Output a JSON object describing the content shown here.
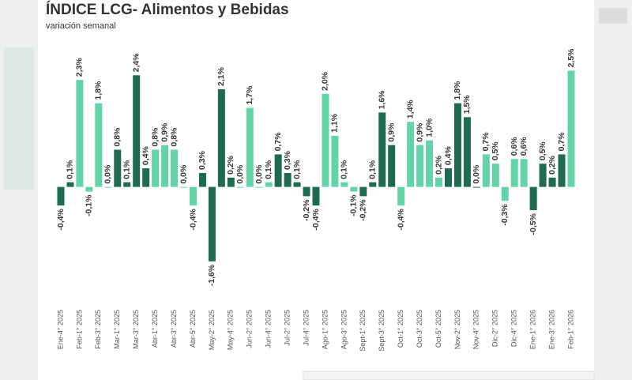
{
  "chart_data": {
    "type": "bar",
    "title": "ÍNDICE LCG- Alimentos y Bebidas",
    "subtitle": "variación semanal",
    "categories": [
      "Ene-4° 2025",
      null,
      "Feb-1° 2025",
      null,
      "Feb-3° 2025",
      null,
      "Mar-1° 2025",
      null,
      "Mar-3° 2025",
      null,
      "Abr-1° 2025",
      null,
      "Abr-3° 2025",
      null,
      "Abr-5° 2025",
      null,
      "May-2° 2025",
      null,
      "May-4° 2025",
      null,
      "Jun-2° 2025",
      null,
      "Jun-4° 2025",
      null,
      "Jul-2° 2025",
      null,
      "Jul-4° 2025",
      null,
      "Ago-1° 2025",
      null,
      "Ago-3° 2025",
      null,
      "Sept-1° 2025",
      null,
      "Sept-3° 2025",
      null,
      "Oct-1° 2025",
      null,
      "Oct-3° 2025",
      null,
      "Oct-5° 2025",
      null,
      "Nov-2° 2025",
      null,
      "Nov-4° 2025",
      null,
      "Dic-2° 2025",
      null,
      "Dic-4° 2025",
      null,
      "Ene-1° 2026",
      null,
      "Ene-3° 2026",
      null,
      "Feb-1° 2026"
    ],
    "values": [
      -0.4,
      0.1,
      2.3,
      -0.1,
      1.8,
      0.0,
      0.8,
      0.1,
      2.4,
      0.4,
      0.8,
      0.9,
      0.8,
      0.0,
      -0.4,
      0.3,
      -1.6,
      2.1,
      0.2,
      0.0,
      1.7,
      0.0,
      0.1,
      0.7,
      0.3,
      0.1,
      -0.2,
      -0.4,
      2.0,
      1.1,
      0.1,
      -0.1,
      -0.2,
      0.1,
      1.6,
      0.9,
      -0.4,
      1.4,
      0.9,
      1.0,
      0.2,
      0.4,
      1.8,
      1.5,
      0.0,
      0.7,
      0.5,
      -0.3,
      0.6,
      0.6,
      -0.5,
      0.5,
      0.2,
      0.7,
      2.5
    ],
    "value_labels": [
      "-0,4%",
      "0,1%",
      "2,3%",
      "-0,1%",
      "1,8%",
      "0,0%",
      "0,8%",
      "0,1%",
      "2,4%",
      "0,4%",
      "0,8%",
      "0,9%",
      "0,8%",
      "0,0%",
      "-0,4%",
      "0,3%",
      "-1,6%",
      "2,1%",
      "0,2%",
      "0,0%",
      "1,7%",
      "0,0%",
      "0,1%",
      "0,7%",
      "0,3%",
      "0,1%",
      "-0,2%",
      "-0,4%",
      "2,0%",
      "1,1%",
      "0,1%",
      "-0,1%",
      "-0,2%",
      "0,1%",
      "1,6%",
      "0,9%",
      "-0,4%",
      "1,4%",
      "0,9%",
      "1,0%",
      "0,2%",
      "0,4%",
      "1,8%",
      "1,5%",
      "0,0%",
      "0,7%",
      "0,5%",
      "-0,3%",
      "0,6%",
      "0,6%",
      "-0,5%",
      "0,5%",
      "0,2%",
      "0,7%",
      "2,5%"
    ],
    "colors": [
      "#1e6b50",
      "#1e6b50",
      "#62d4a8",
      "#62d4a8",
      "#62d4a8",
      "#62d4a8",
      "#1e6b50",
      "#1e6b50",
      "#1e6b50",
      "#1e6b50",
      "#62d4a8",
      "#62d4a8",
      "#62d4a8",
      "#62d4a8",
      "#62d4a8",
      "#1e6b50",
      "#1e6b50",
      "#1e6b50",
      "#1e6b50",
      "#62d4a8",
      "#62d4a8",
      "#62d4a8",
      "#62d4a8",
      "#1e6b50",
      "#1e6b50",
      "#1e6b50",
      "#1e6b50",
      "#1e6b50",
      "#62d4a8",
      "#62d4a8",
      "#62d4a8",
      "#62d4a8",
      "#1e6b50",
      "#1e6b50",
      "#1e6b50",
      "#1e6b50",
      "#62d4a8",
      "#62d4a8",
      "#62d4a8",
      "#62d4a8",
      "#62d4a8",
      "#1e6b50",
      "#1e6b50",
      "#1e6b50",
      "#1e6b50",
      "#62d4a8",
      "#62d4a8",
      "#62d4a8",
      "#62d4a8",
      "#62d4a8",
      "#1e6b50",
      "#1e6b50",
      "#1e6b50",
      "#1e6b50",
      "#62d4a8"
    ],
    "ylim": [
      -2.3,
      3.0
    ]
  }
}
